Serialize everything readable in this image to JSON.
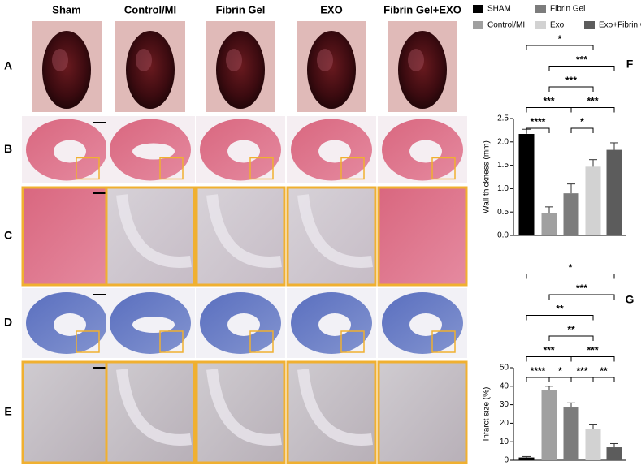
{
  "figure": {
    "columns": [
      "Sham",
      "Control/MI",
      "Fibrin Gel",
      "EXO",
      "Fibrin Gel+EXO"
    ],
    "rows": [
      "A",
      "B",
      "C",
      "D",
      "E"
    ],
    "panels": [
      "F",
      "G"
    ]
  },
  "legend": {
    "labels": [
      "SHAM",
      "Control/MI",
      "Fibrin Gel",
      "Exo",
      "Exo+Fibrin Gel"
    ],
    "colors": [
      "#000000",
      "#a0a0a0",
      "#7c7c7c",
      "#d2d2d2",
      "#5c5c5c"
    ]
  },
  "chart_data": [
    {
      "type": "bar",
      "ylabel": "Wall thickness (mm)",
      "values": [
        2.17,
        0.48,
        0.9,
        1.47,
        1.83
      ],
      "errors": [
        0.1,
        0.13,
        0.2,
        0.15,
        0.15
      ],
      "ylim": [
        0,
        2.5
      ],
      "yticks": [
        {
          "value": 0,
          "label": "0.0"
        },
        0.5,
        {
          "value": 1,
          "label": "1.0"
        },
        1.5,
        {
          "value": 2,
          "label": "2.0"
        },
        2.5
      ],
      "annotations": [
        {
          "text": "****",
          "from": 0,
          "to": 1
        },
        {
          "text": "*",
          "from": 2,
          "to": 3
        },
        {
          "text": "***",
          "from": 0,
          "to": 2
        },
        {
          "text": "***",
          "from": 2,
          "to": 4
        },
        {
          "text": "***",
          "from": 1,
          "to": 3
        },
        {
          "text": "***",
          "from": 1,
          "to": 4
        },
        {
          "text": "*",
          "from": 0,
          "to": 3
        }
      ]
    },
    {
      "type": "bar",
      "ylabel": "Infarct size (%)",
      "values": [
        1.5,
        38,
        28.5,
        17,
        7
      ],
      "errors": [
        0.5,
        2,
        2.5,
        2.5,
        2
      ],
      "ylim": [
        0,
        50
      ],
      "yticks": [
        0,
        10,
        20,
        30,
        40,
        50
      ],
      "annotations": [
        {
          "text": "****",
          "from": 0,
          "to": 1
        },
        {
          "text": "***",
          "from": 2,
          "to": 3
        },
        {
          "text": "*",
          "from": 1,
          "to": 2
        },
        {
          "text": "**",
          "from": 3,
          "to": 4
        },
        {
          "text": "***",
          "from": 0,
          "to": 2
        },
        {
          "text": "***",
          "from": 2,
          "to": 4
        },
        {
          "text": "**",
          "from": 1,
          "to": 3
        },
        {
          "text": "**",
          "from": 0,
          "to": 3
        },
        {
          "text": "***",
          "from": 1,
          "to": 4
        },
        {
          "text": "*",
          "from": 0,
          "to": 4
        }
      ]
    }
  ]
}
